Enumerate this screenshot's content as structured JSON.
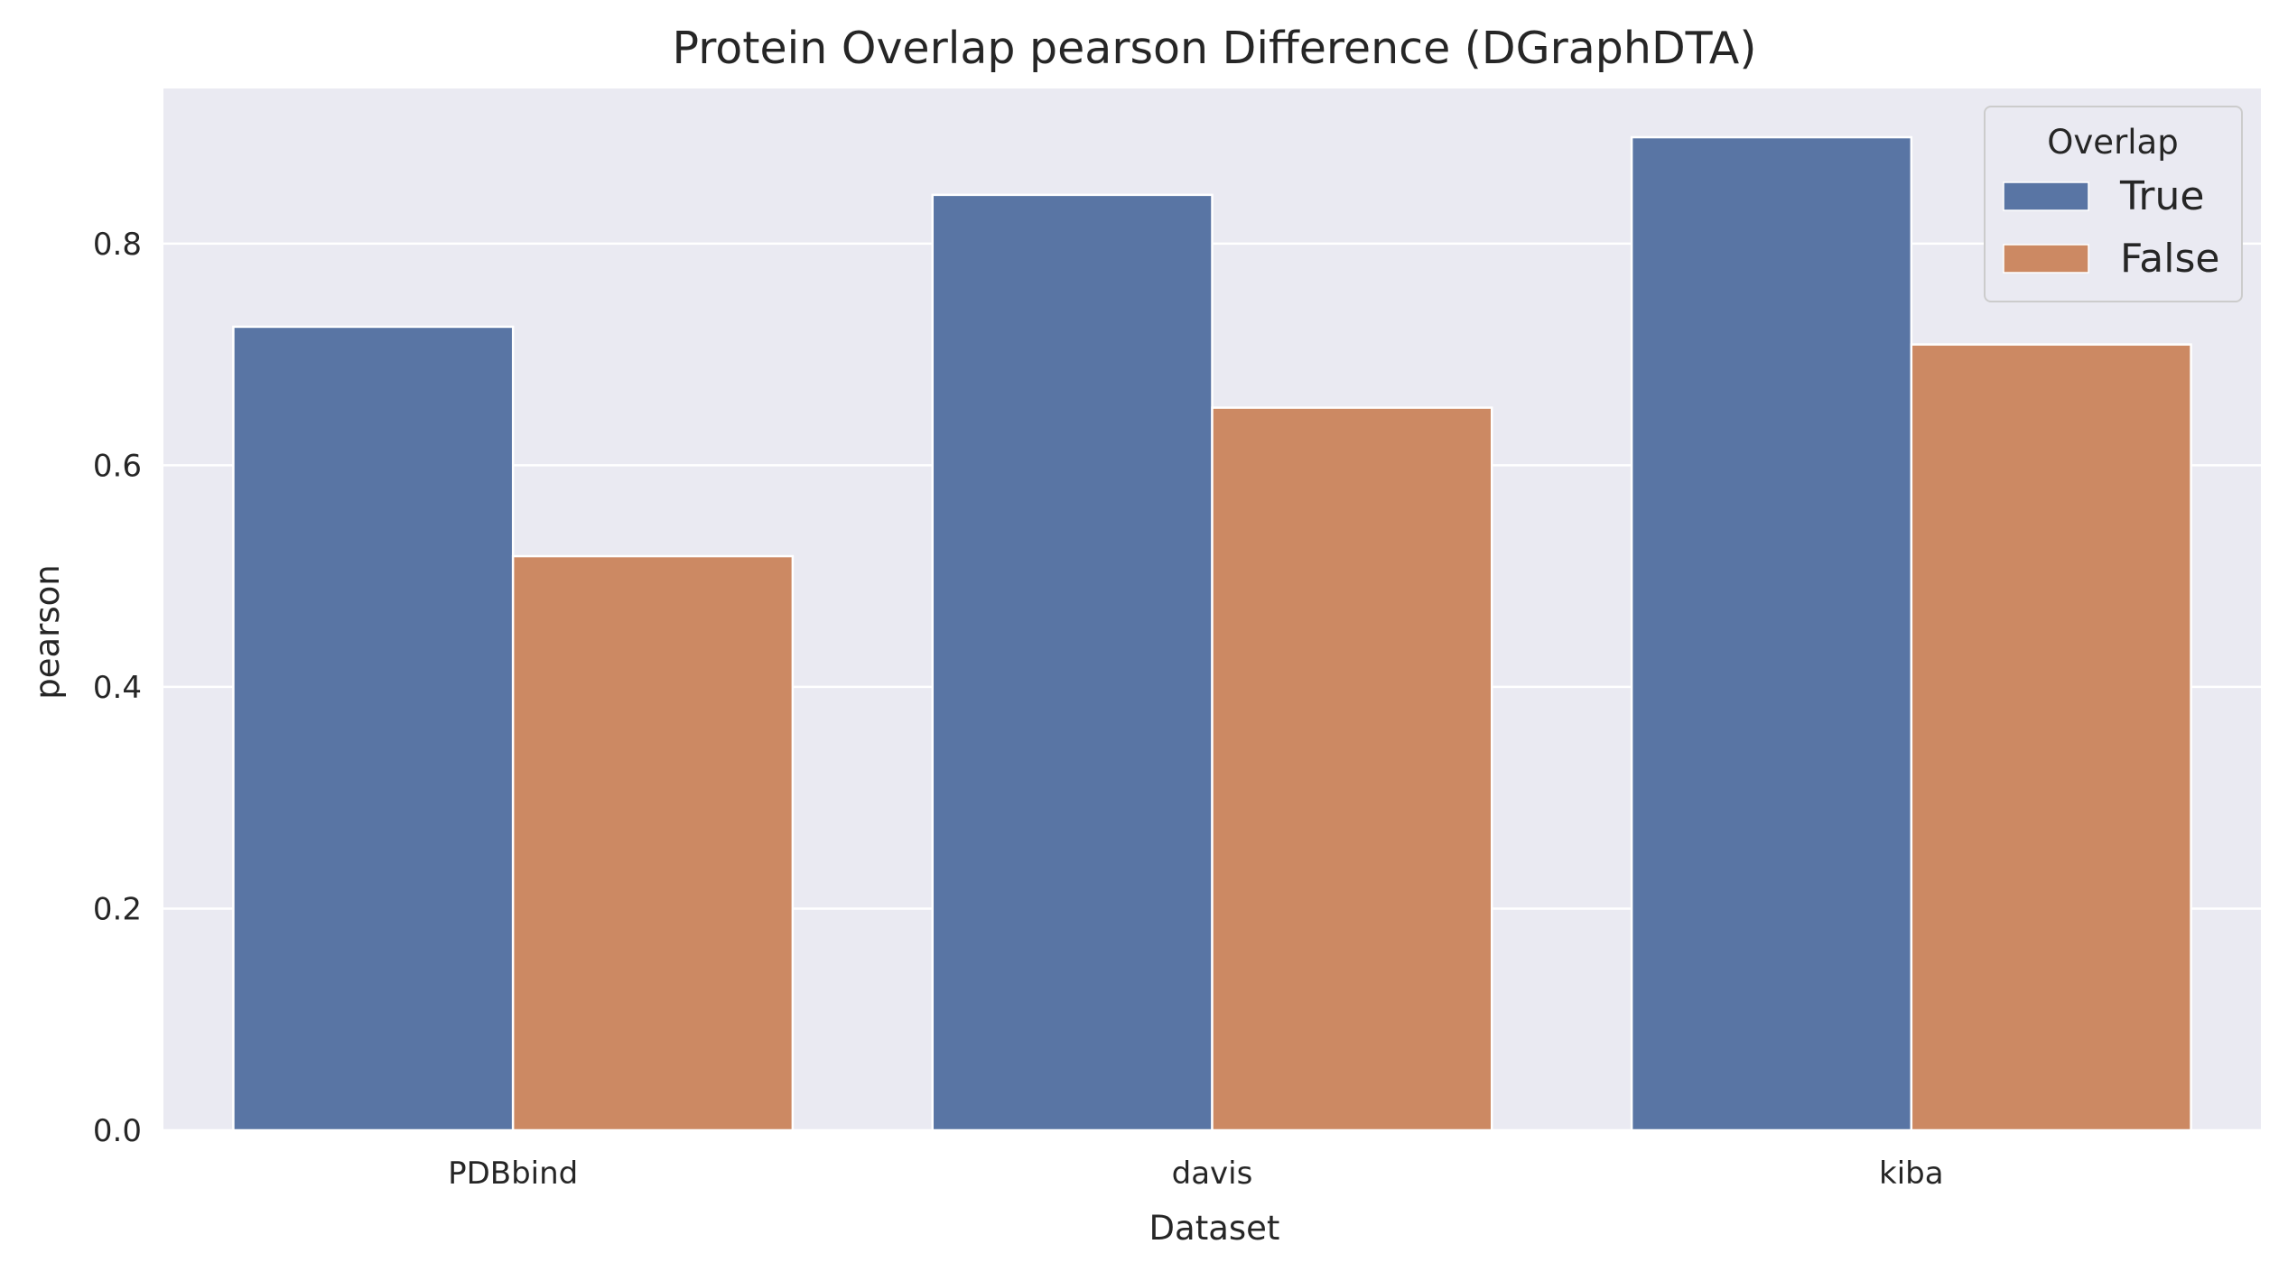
{
  "chart_data": {
    "type": "bar",
    "title": "Protein Overlap pearson Difference (DGraphDTA)",
    "xlabel": "Dataset",
    "ylabel": "pearson",
    "categories": [
      "PDBbind",
      "davis",
      "kiba"
    ],
    "series": [
      {
        "name": "True",
        "values": [
          0.725,
          0.844,
          0.896
        ],
        "color": "#5975a4"
      },
      {
        "name": "False",
        "values": [
          0.518,
          0.652,
          0.709
        ],
        "color": "#cc8963"
      }
    ],
    "ylim": [
      0,
      0.94
    ],
    "yticks": [
      "0.0",
      "0.2",
      "0.4",
      "0.6",
      "0.8"
    ],
    "ytick_values": [
      0.0,
      0.2,
      0.4,
      0.6,
      0.8
    ],
    "grid": true,
    "background_color": "#eaeaf2",
    "legend": {
      "title": "Overlap",
      "position": "top-right"
    }
  }
}
